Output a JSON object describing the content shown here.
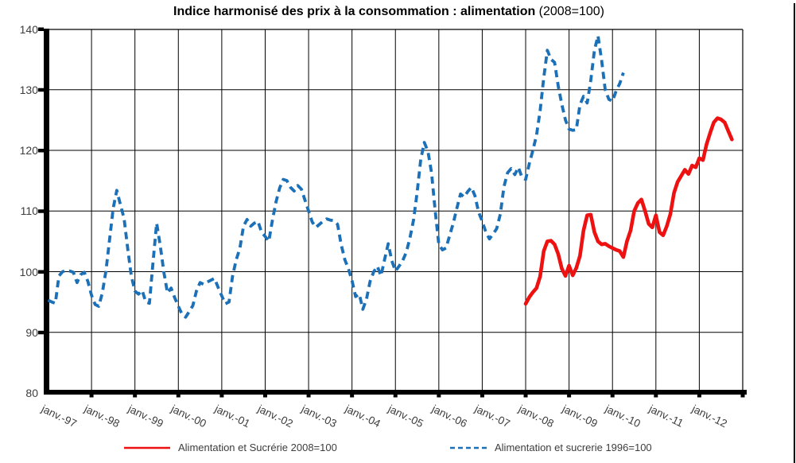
{
  "title": {
    "main": "Indice harmonisé des prix à la consommation : alimentation",
    "suffix": " (2008=100)"
  },
  "y_axis": {
    "tick_labels": [
      "140",
      "130",
      "120",
      "110",
      "100",
      "90",
      "80"
    ]
  },
  "x_axis": {
    "tick_labels": [
      "janv.-97",
      "janv.-98",
      "janv.-99",
      "janv.-00",
      "janv.-01",
      "janv.-02",
      "janv.-03",
      "janv.-04",
      "janv.-05",
      "janv.-06",
      "janv.-07",
      "janv.-08",
      "janv.-09",
      "janv.-10",
      "janv.-11",
      "janv.-12"
    ]
  },
  "legend": {
    "items": [
      {
        "label": "Alimentation et Sucrérie 2008=100",
        "style": "solid"
      },
      {
        "label": "Alimentation et sucrerie 1996=100",
        "style": "dashed"
      }
    ]
  },
  "chart_data": {
    "type": "line",
    "title": "Indice harmonisé des prix à la consommation : alimentation (2008=100)",
    "ylabel": "",
    "xlabel": "",
    "ylim": [
      80,
      140
    ],
    "y_gridline_step": 10,
    "x_frequency": "monthly",
    "x_axis_span": [
      "janv. 1997",
      "janv. 2013"
    ],
    "grid": true,
    "legend_position": "bottom",
    "series": [
      {
        "name": "Alimentation et Sucrérie 2008=100",
        "color": "#ee1111",
        "line_style": "solid",
        "start_month": "2008-01",
        "values": [
          94.7,
          95.8,
          96.6,
          97.3,
          99.2,
          103.4,
          105.0,
          105.1,
          104.5,
          102.9,
          100.5,
          99.3,
          101.0,
          99.4,
          100.6,
          102.6,
          106.8,
          109.3,
          109.4,
          106.5,
          105.0,
          104.5,
          104.6,
          104.2,
          103.9,
          103.6,
          103.4,
          102.4,
          105.0,
          106.8,
          110.0,
          111.3,
          111.9,
          110.0,
          107.9,
          107.3,
          109.3,
          106.5,
          106.0,
          107.5,
          109.5,
          113.0,
          114.8,
          115.8,
          116.8,
          116.1,
          117.5,
          117.2,
          118.7,
          118.4,
          121.0,
          122.9,
          124.6,
          125.3,
          125.1,
          124.6,
          123.2,
          121.8
        ]
      },
      {
        "name": "Alimentation et sucrerie 1996=100",
        "color": "#1b70b8",
        "line_style": "dashed",
        "start_month": "1997-01",
        "values": [
          95.3,
          95.0,
          94.8,
          99.3,
          100.0,
          100.2,
          100.1,
          99.9,
          98.2,
          99.5,
          99.9,
          98.4,
          96.1,
          94.6,
          94.3,
          96.5,
          100.2,
          105.3,
          110.5,
          113.4,
          111.0,
          108.8,
          103.8,
          99.3,
          96.8,
          96.3,
          96.9,
          95.0,
          94.8,
          101.5,
          108.0,
          104.3,
          99.9,
          96.5,
          97.3,
          95.7,
          94.3,
          93.0,
          92.5,
          93.4,
          94.4,
          96.8,
          98.2,
          97.9,
          98.3,
          98.6,
          98.9,
          97.4,
          96.0,
          94.7,
          95.0,
          99.3,
          102.0,
          103.8,
          107.5,
          108.6,
          107.5,
          108.0,
          108.3,
          106.5,
          105.8,
          105.0,
          108.5,
          111.5,
          113.8,
          115.2,
          115.0,
          113.9,
          113.3,
          114.2,
          113.6,
          111.8,
          110.0,
          108.2,
          107.3,
          107.8,
          108.3,
          108.7,
          108.5,
          108.4,
          107.8,
          104.5,
          102.0,
          100.5,
          98.5,
          95.9,
          96.3,
          93.8,
          95.5,
          98.4,
          100.0,
          100.9,
          99.3,
          102.0,
          104.6,
          101.8,
          100.1,
          100.9,
          101.8,
          103.2,
          105.5,
          108.5,
          113.0,
          118.5,
          121.3,
          119.8,
          116.3,
          110.0,
          104.5,
          103.6,
          103.9,
          106.0,
          108.0,
          110.5,
          112.8,
          112.3,
          113.2,
          113.9,
          112.5,
          109.8,
          108.3,
          106.5,
          105.4,
          106.2,
          107.1,
          109.5,
          114.0,
          116.3,
          117.0,
          116.0,
          117.2,
          115.5,
          115.2,
          117.8,
          120.0,
          122.5,
          126.5,
          132.0,
          136.5,
          135.0,
          134.5,
          130.6,
          127.6,
          125.0,
          123.5,
          123.3,
          123.4,
          127.5,
          128.9,
          127.8,
          131.5,
          136.5,
          138.9,
          134.8,
          130.0,
          128.4,
          128.1,
          129.8,
          131.0,
          132.8
        ]
      }
    ]
  }
}
